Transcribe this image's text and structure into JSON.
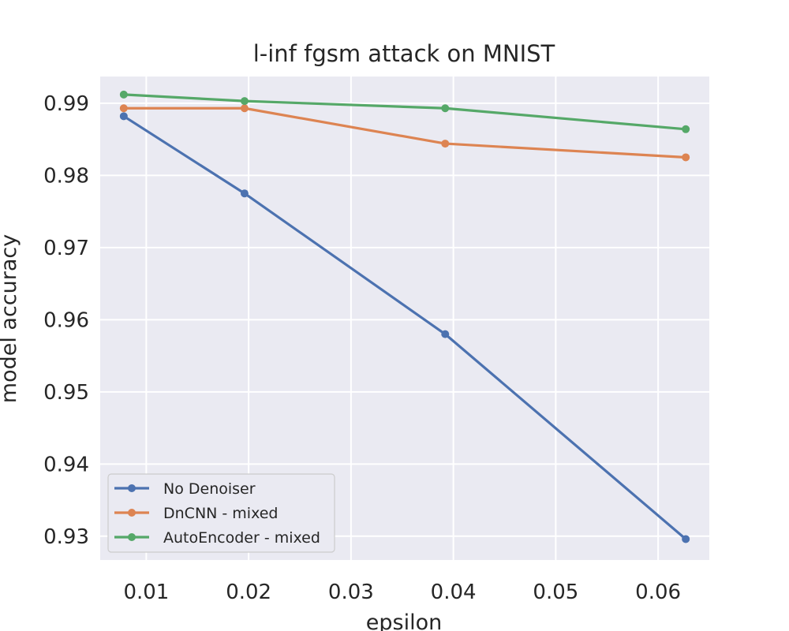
{
  "chart_data": {
    "type": "line",
    "title": "l-inf fgsm attack on MNIST",
    "xlabel": "epsilon",
    "ylabel": "model accuracy",
    "x": [
      0.0078,
      0.0196,
      0.0392,
      0.0627
    ],
    "xlim": [
      0.0055,
      0.065
    ],
    "ylim": [
      0.9267,
      0.9937
    ],
    "xticks": [
      0.01,
      0.02,
      0.03,
      0.04,
      0.05,
      0.06
    ],
    "xtick_labels": [
      "0.01",
      "0.02",
      "0.03",
      "0.04",
      "0.05",
      "0.06"
    ],
    "yticks": [
      0.93,
      0.94,
      0.95,
      0.96,
      0.97,
      0.98,
      0.99
    ],
    "ytick_labels": [
      "0.93",
      "0.94",
      "0.95",
      "0.96",
      "0.97",
      "0.98",
      "0.99"
    ],
    "grid": true,
    "legend_position": "bottom-left",
    "series": [
      {
        "name": "No Denoiser",
        "color": "#4c72b0",
        "values": [
          0.9882,
          0.9775,
          0.958,
          0.9296
        ]
      },
      {
        "name": "DnCNN - mixed",
        "color": "#dd8452",
        "values": [
          0.9893,
          0.9893,
          0.9844,
          0.9825
        ]
      },
      {
        "name": "AutoEncoder - mixed",
        "color": "#55a868",
        "values": [
          0.9912,
          0.9903,
          0.9893,
          0.9864
        ]
      }
    ]
  }
}
